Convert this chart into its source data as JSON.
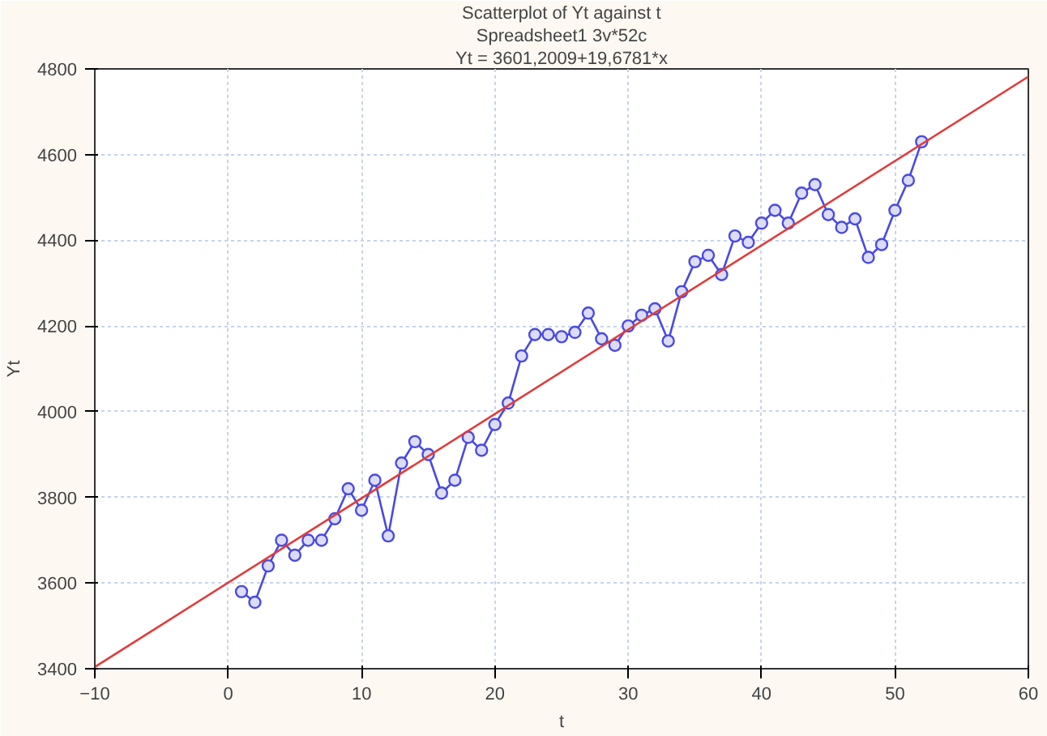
{
  "chart_data": {
    "type": "line",
    "title": "Scatterplot of Yt against t",
    "subtitle": "Spreadsheet1 3v*52c",
    "annotations": [
      "Yt = 3601,2009+19,6781*x"
    ],
    "xlabel": "t",
    "ylabel": "Yt",
    "xlim": [
      -10,
      60
    ],
    "xticks": [
      -10,
      0,
      10,
      20,
      30,
      40,
      50,
      60
    ],
    "ylim": [
      3400,
      4800
    ],
    "yticks": [
      3400,
      3600,
      3800,
      4000,
      4200,
      4400,
      4600,
      4800
    ],
    "grid": true,
    "series": [
      {
        "marker": "circle",
        "color": "#4a4ae0",
        "x": [
          1,
          2,
          3,
          4,
          5,
          6,
          7,
          8,
          9,
          10,
          11,
          12,
          13,
          14,
          15,
          16,
          17,
          18,
          19,
          20,
          21,
          22,
          23,
          24,
          25,
          26,
          27,
          28,
          29,
          30,
          31,
          32,
          33,
          34,
          35,
          36,
          37,
          38,
          39,
          40,
          41,
          42,
          43,
          44,
          45,
          46,
          47,
          48,
          49,
          50,
          51,
          52
        ],
        "values": [
          3580,
          3555,
          3640,
          3700,
          3665,
          3700,
          3700,
          3750,
          3820,
          3770,
          3840,
          3710,
          3880,
          3930,
          3900,
          3810,
          3840,
          3940,
          3910,
          3970,
          4020,
          4130,
          4180,
          4180,
          4175,
          4185,
          4230,
          4170,
          4155,
          4200,
          4225,
          4240,
          4165,
          4280,
          4350,
          4365,
          4320,
          4410,
          4395,
          4440,
          4470,
          4440,
          4510,
          4530,
          4460,
          4430,
          4450,
          4360,
          4390,
          4470,
          4540,
          4630
        ]
      },
      {
        "marker": "none",
        "color": "#e03c3c",
        "x": [
          -10,
          60
        ],
        "values": [
          3404,
          4782
        ]
      }
    ]
  }
}
